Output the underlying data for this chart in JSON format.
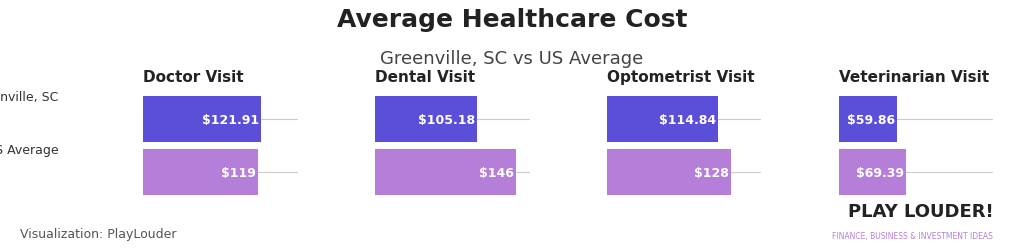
{
  "title": "Average Healthcare Cost",
  "subtitle": "Greenville, SC vs US Average",
  "categories": [
    "Doctor Visit",
    "Dental Visit",
    "Optometrist Visit",
    "Veterinarian Visit"
  ],
  "greenville_values": [
    121.91,
    105.18,
    114.84,
    59.86
  ],
  "us_values": [
    119,
    146,
    128,
    69.39
  ],
  "greenville_labels": [
    "$121.91",
    "$105.18",
    "$114.84",
    "$59.86"
  ],
  "us_labels": [
    "$119",
    "$146",
    "$128",
    "$69.39"
  ],
  "greenville_color": "#5B4FD9",
  "us_color": "#B57FD9",
  "row_labels": [
    "Greenville, SC",
    "US Average"
  ],
  "background_color": "#FFFFFF",
  "title_fontsize": 18,
  "subtitle_fontsize": 13,
  "category_fontsize": 11,
  "bar_label_fontsize": 9,
  "footer_text": "Visualization: PlayLouder",
  "footer_fontsize": 9,
  "watermark_line1": "PLAY LOUDER!",
  "watermark_line2": "FINANCE, BUSINESS & INVESTMENT IDEAS",
  "bar_height": 0.32,
  "bar_max": 160
}
